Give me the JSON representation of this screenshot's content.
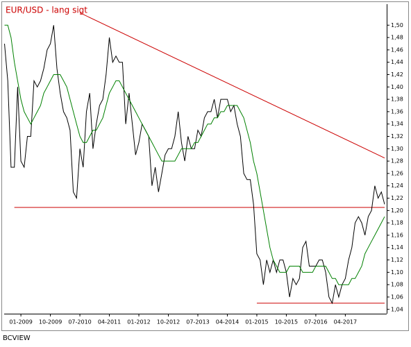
{
  "chart_data": {
    "type": "line",
    "title": "EUR/USD - lang sigt",
    "source": "BCVIEW",
    "x": [
      "08-2008",
      "09-2008",
      "10-2008",
      "11-2008",
      "12-2008",
      "01-2009",
      "02-2009",
      "03-2009",
      "04-2009",
      "05-2009",
      "06-2009",
      "07-2009",
      "08-2009",
      "09-2009",
      "10-2009",
      "11-2009",
      "12-2009",
      "01-2010",
      "02-2010",
      "03-2010",
      "04-2010",
      "05-2010",
      "06-2010",
      "07-2010",
      "08-2010",
      "09-2010",
      "10-2010",
      "11-2010",
      "12-2010",
      "01-2011",
      "02-2011",
      "03-2011",
      "04-2011",
      "05-2011",
      "06-2011",
      "07-2011",
      "08-2011",
      "09-2011",
      "10-2011",
      "11-2011",
      "12-2011",
      "01-2012",
      "02-2012",
      "03-2012",
      "04-2012",
      "05-2012",
      "06-2012",
      "07-2012",
      "08-2012",
      "09-2012",
      "10-2012",
      "11-2012",
      "12-2012",
      "01-2013",
      "02-2013",
      "03-2013",
      "04-2013",
      "05-2013",
      "06-2013",
      "07-2013",
      "08-2013",
      "09-2013",
      "10-2013",
      "11-2013",
      "12-2013",
      "01-2014",
      "02-2014",
      "03-2014",
      "04-2014",
      "05-2014",
      "06-2014",
      "07-2014",
      "08-2014",
      "09-2014",
      "10-2014",
      "11-2014",
      "12-2014",
      "01-2015",
      "02-2015",
      "03-2015",
      "04-2015",
      "05-2015",
      "06-2015",
      "07-2015",
      "08-2015",
      "09-2015",
      "10-2015",
      "11-2015",
      "12-2015",
      "01-2016",
      "02-2016",
      "03-2016",
      "04-2016",
      "05-2016",
      "06-2016",
      "07-2016",
      "08-2016",
      "09-2016",
      "10-2016",
      "11-2016",
      "12-2016",
      "01-2017",
      "02-2017",
      "03-2017",
      "04-2017",
      "05-2017",
      "06-2017",
      "07-2017",
      "08-2017",
      "09-2017",
      "10-2017",
      "11-2017",
      "12-2017",
      "01-2018",
      "02-2018",
      "03-2018",
      "04-2018"
    ],
    "series": [
      {
        "color": "#000000",
        "values": [
          1.47,
          1.41,
          1.27,
          1.27,
          1.4,
          1.28,
          1.27,
          1.32,
          1.32,
          1.41,
          1.4,
          1.41,
          1.43,
          1.46,
          1.47,
          1.5,
          1.43,
          1.39,
          1.36,
          1.35,
          1.33,
          1.23,
          1.22,
          1.3,
          1.27,
          1.36,
          1.39,
          1.3,
          1.34,
          1.37,
          1.38,
          1.42,
          1.48,
          1.44,
          1.45,
          1.44,
          1.44,
          1.34,
          1.39,
          1.34,
          1.29,
          1.31,
          1.34,
          1.33,
          1.32,
          1.24,
          1.27,
          1.23,
          1.26,
          1.29,
          1.3,
          1.3,
          1.32,
          1.36,
          1.31,
          1.28,
          1.32,
          1.3,
          1.3,
          1.33,
          1.32,
          1.35,
          1.36,
          1.36,
          1.38,
          1.35,
          1.38,
          1.38,
          1.38,
          1.36,
          1.37,
          1.34,
          1.32,
          1.26,
          1.25,
          1.25,
          1.21,
          1.13,
          1.12,
          1.08,
          1.12,
          1.1,
          1.12,
          1.1,
          1.12,
          1.12,
          1.1,
          1.06,
          1.09,
          1.08,
          1.09,
          1.14,
          1.15,
          1.11,
          1.11,
          1.11,
          1.12,
          1.12,
          1.1,
          1.06,
          1.05,
          1.08,
          1.06,
          1.08,
          1.09,
          1.12,
          1.14,
          1.18,
          1.19,
          1.18,
          1.16,
          1.19,
          1.2,
          1.24,
          1.22,
          1.23,
          1.21
        ]
      },
      {
        "color": "#008000",
        "values": [
          1.5,
          1.5,
          1.48,
          1.44,
          1.41,
          1.38,
          1.36,
          1.35,
          1.34,
          1.35,
          1.36,
          1.37,
          1.39,
          1.4,
          1.41,
          1.42,
          1.42,
          1.42,
          1.41,
          1.4,
          1.38,
          1.36,
          1.34,
          1.32,
          1.31,
          1.31,
          1.32,
          1.33,
          1.33,
          1.34,
          1.35,
          1.37,
          1.39,
          1.4,
          1.41,
          1.41,
          1.4,
          1.39,
          1.38,
          1.37,
          1.36,
          1.35,
          1.34,
          1.33,
          1.32,
          1.31,
          1.3,
          1.29,
          1.28,
          1.28,
          1.28,
          1.28,
          1.28,
          1.29,
          1.3,
          1.3,
          1.3,
          1.3,
          1.31,
          1.31,
          1.32,
          1.33,
          1.34,
          1.34,
          1.35,
          1.35,
          1.36,
          1.36,
          1.37,
          1.37,
          1.37,
          1.37,
          1.36,
          1.35,
          1.33,
          1.31,
          1.28,
          1.26,
          1.23,
          1.2,
          1.17,
          1.14,
          1.12,
          1.11,
          1.1,
          1.1,
          1.1,
          1.11,
          1.11,
          1.11,
          1.11,
          1.1,
          1.1,
          1.1,
          1.1,
          1.11,
          1.11,
          1.11,
          1.11,
          1.1,
          1.09,
          1.09,
          1.08,
          1.08,
          1.08,
          1.08,
          1.09,
          1.09,
          1.1,
          1.11,
          1.13,
          1.14,
          1.15,
          1.16,
          1.17,
          1.18,
          1.19
        ]
      }
    ],
    "trend_lines": [
      {
        "color": "#cc0000",
        "x": [
          "07-2010",
          "04-2018"
        ],
        "values": [
          1.52,
          1.285
        ]
      },
      {
        "color": "#cc0000",
        "x": [
          "11-2008",
          "04-2018"
        ],
        "values": [
          1.205,
          1.205
        ]
      },
      {
        "color": "#cc0000",
        "x": [
          "01-2015",
          "04-2018"
        ],
        "values": [
          1.05,
          1.05
        ]
      }
    ],
    "xticks": [
      "01-2009",
      "10-2009",
      "07-2010",
      "04-2011",
      "01-2012",
      "10-2012",
      "07-2013",
      "04-2014",
      "01-2015",
      "10-2015",
      "07-2016",
      "04-2017"
    ],
    "ylim": [
      1.033,
      1.534
    ],
    "yticks": [
      {
        "value": 1.04,
        "label": "1,04"
      },
      {
        "value": 1.06,
        "label": "1,06"
      },
      {
        "value": 1.08,
        "label": "1,08"
      },
      {
        "value": 1.1,
        "label": "1,10"
      },
      {
        "value": 1.12,
        "label": "1,12"
      },
      {
        "value": 1.14,
        "label": "1,14"
      },
      {
        "value": 1.16,
        "label": "1,16"
      },
      {
        "value": 1.18,
        "label": "1,18"
      },
      {
        "value": 1.2,
        "label": "1,20"
      },
      {
        "value": 1.22,
        "label": "1,22"
      },
      {
        "value": 1.24,
        "label": "1,24"
      },
      {
        "value": 1.26,
        "label": "1,26"
      },
      {
        "value": 1.28,
        "label": "1,28"
      },
      {
        "value": 1.3,
        "label": "1,30"
      },
      {
        "value": 1.32,
        "label": "1,32"
      },
      {
        "value": 1.34,
        "label": "1,34"
      },
      {
        "value": 1.36,
        "label": "1,36"
      },
      {
        "value": 1.38,
        "label": "1,38"
      },
      {
        "value": 1.4,
        "label": "1,40"
      },
      {
        "value": 1.42,
        "label": "1,42"
      },
      {
        "value": 1.44,
        "label": "1,44"
      },
      {
        "value": 1.46,
        "label": "1,46"
      },
      {
        "value": 1.48,
        "label": "1,48"
      },
      {
        "value": 1.5,
        "label": "1,50"
      }
    ]
  }
}
